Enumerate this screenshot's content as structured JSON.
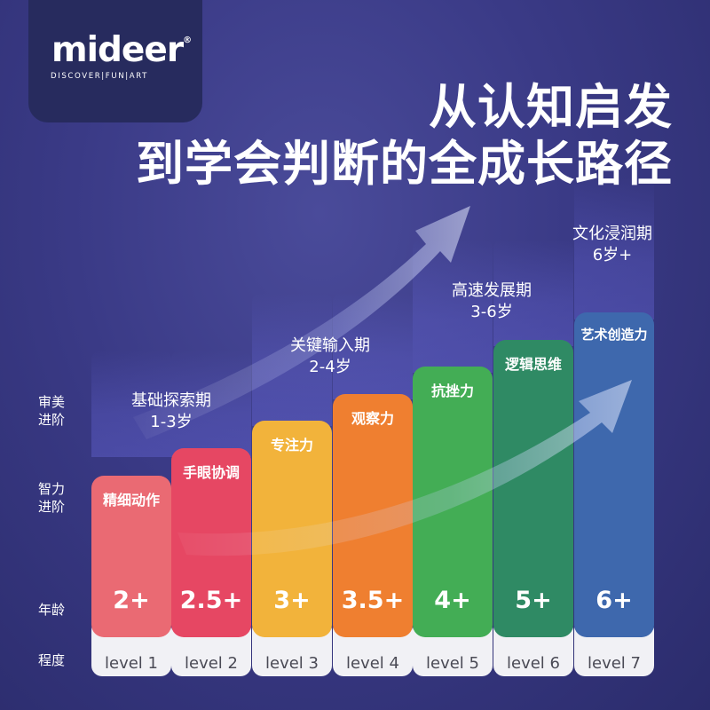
{
  "brand": {
    "name": "mideer",
    "mark": "®",
    "tagline": "DISCOVER|FUN|ART"
  },
  "headline": {
    "line1": "从认知启发",
    "line2": "到学会判断的全成长路径"
  },
  "row_labels": {
    "aesthetic": "审美\n进阶",
    "intellect": "智力\n进阶",
    "age": "年龄",
    "degree": "程度"
  },
  "stages": [
    {
      "name": "基础探索期",
      "range": "1-3岁"
    },
    {
      "name": "关键输入期",
      "range": "2-4岁"
    },
    {
      "name": "高速发展期",
      "range": "3-6岁"
    },
    {
      "name": "文化浸润期",
      "range": "6岁+"
    }
  ],
  "columns": [
    {
      "trait": "精细动作",
      "age": "2+",
      "level": "level 1",
      "color": "#ea6a73"
    },
    {
      "trait": "手眼协调",
      "age": "2.5+",
      "level": "level 2",
      "color": "#e64763"
    },
    {
      "trait": "专注力",
      "age": "3+",
      "level": "level 3",
      "color": "#f2b33b"
    },
    {
      "trait": "观察力",
      "age": "3.5+",
      "level": "level 4",
      "color": "#ef7f30"
    },
    {
      "trait": "抗挫力",
      "age": "4+",
      "level": "level 5",
      "color": "#43ad55"
    },
    {
      "trait": "逻辑思维",
      "age": "5+",
      "level": "level 6",
      "color": "#2f8a64"
    },
    {
      "trait": "艺术创造力",
      "age": "6+",
      "level": "level 7",
      "color": "#3e68ad"
    }
  ]
}
